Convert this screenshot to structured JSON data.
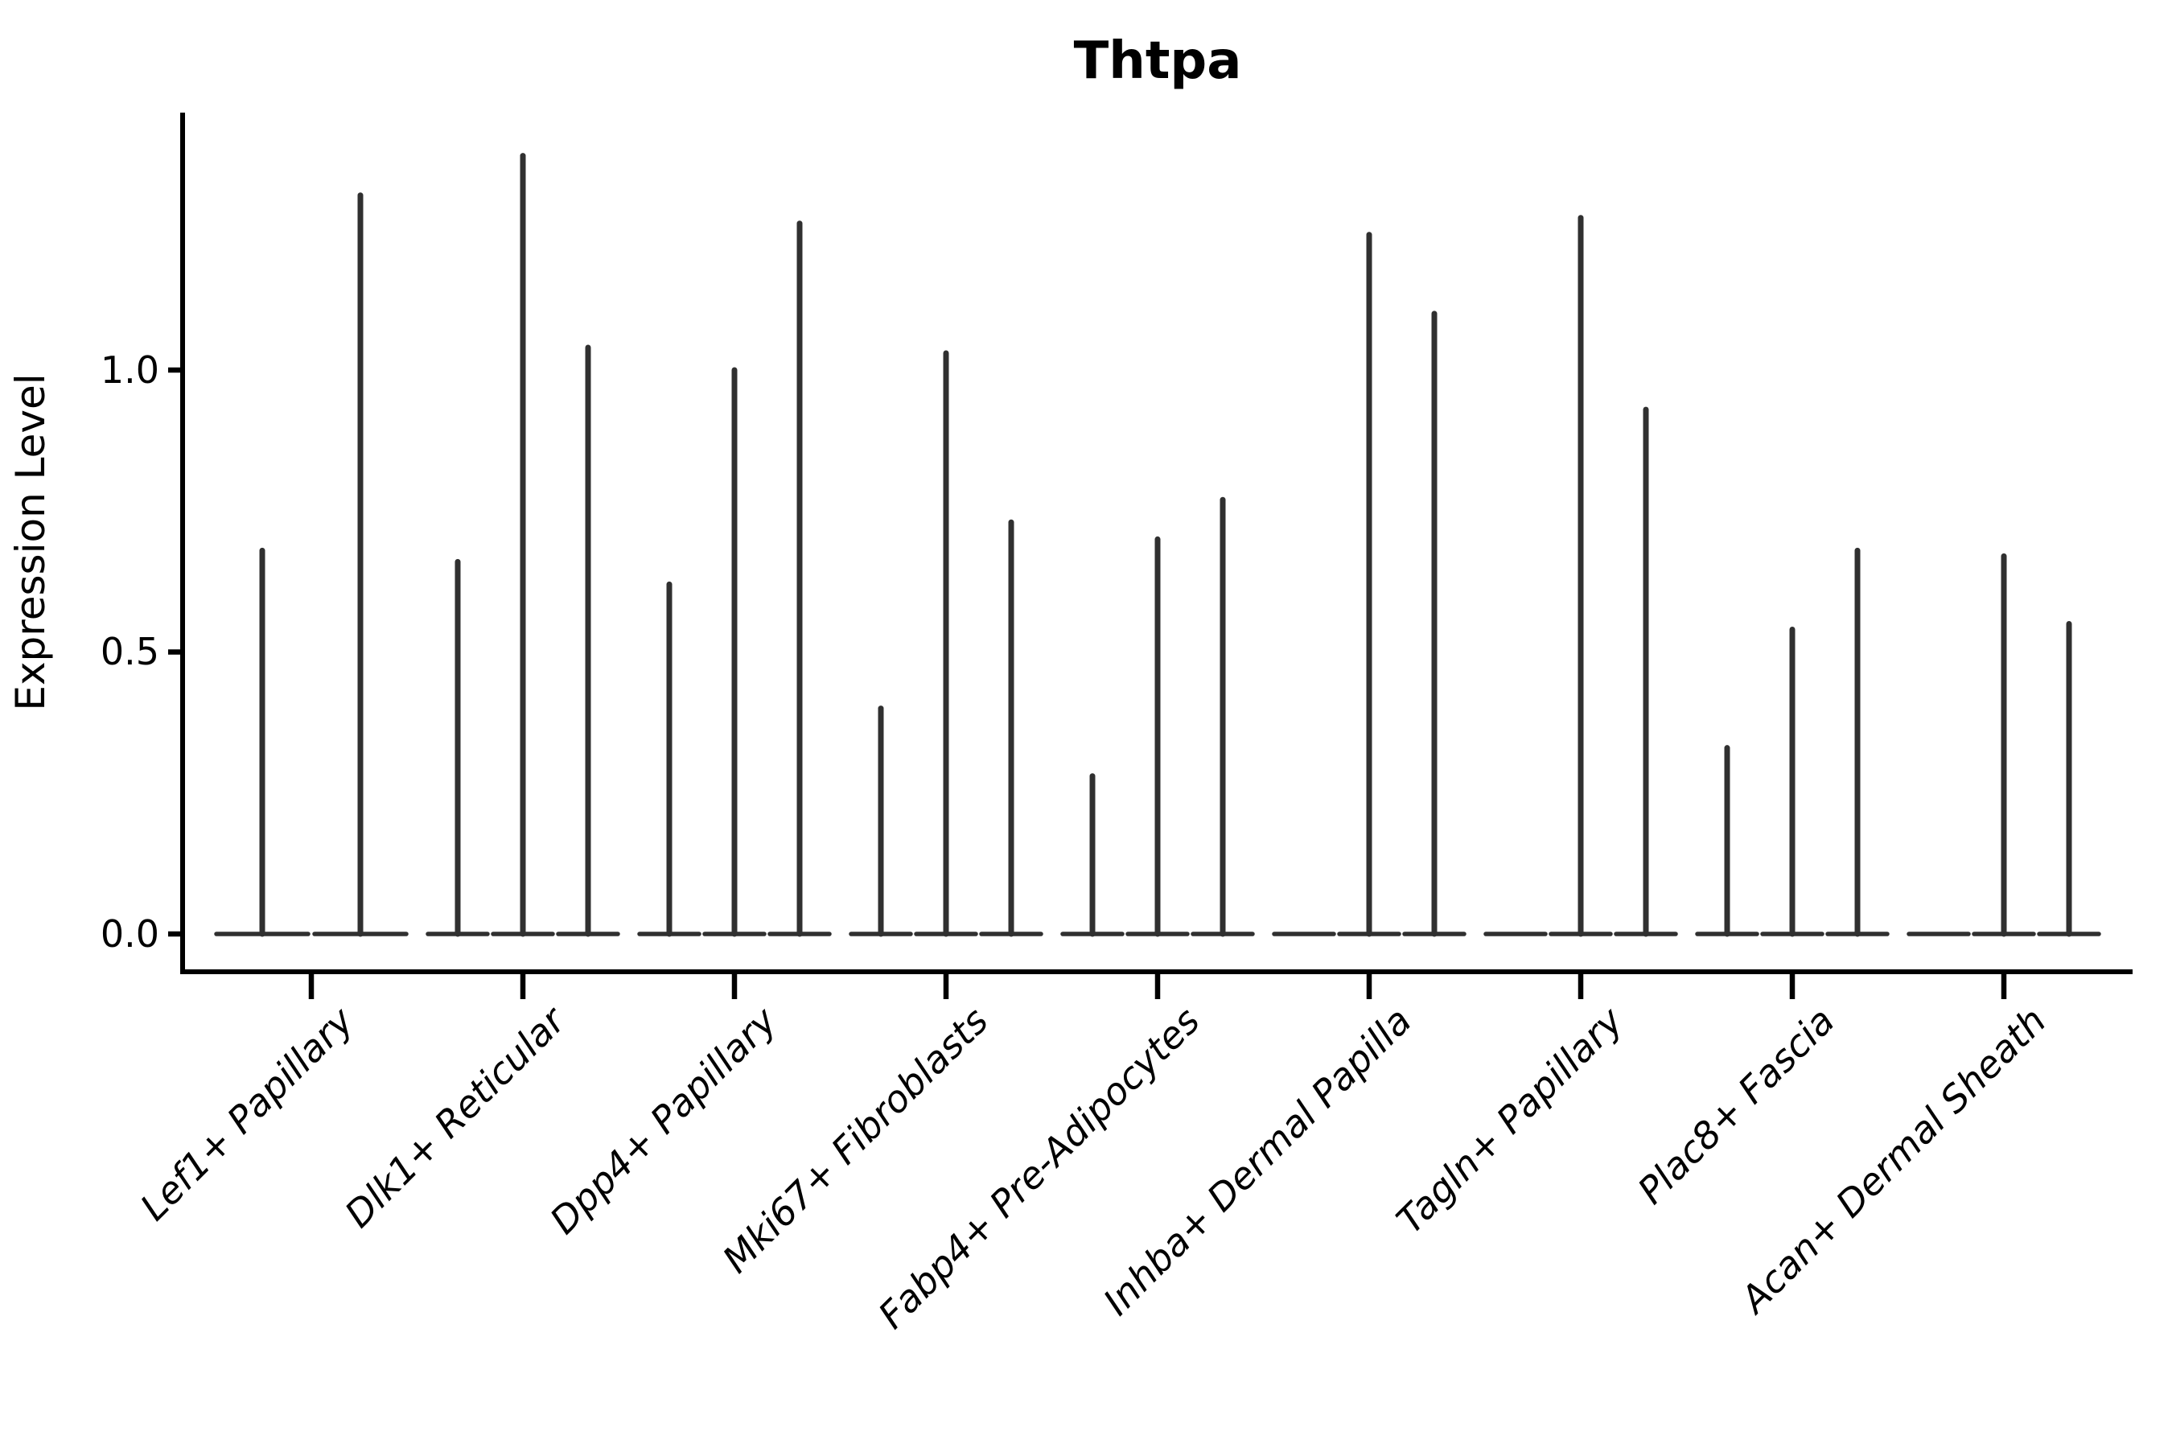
{
  "title": "Thtpa",
  "y_axis": {
    "label": "Expression Level",
    "tick_labels": [
      "0.0",
      "0.5",
      "1.0"
    ]
  },
  "style": {
    "violin_color": "#303030",
    "axis_color": "#000000",
    "background": "#ffffff"
  },
  "chart_data": {
    "type": "violin",
    "title": "Thtpa",
    "xlabel": "",
    "ylabel": "Expression Level",
    "ylim": [
      0,
      1.46
    ],
    "yticks": [
      0.0,
      0.5,
      1.0
    ],
    "grid": false,
    "legend_position": "none",
    "x_tick_rotation": 45,
    "categories": [
      "Lef1+ Papillary",
      "Dlk1+ Reticular",
      "Dpp4+ Papillary",
      "Mki67+ Fibroblasts",
      "Fabp4+ Pre-Adipocytes",
      "Inhba+ Dermal Papilla",
      "Tagln+ Papillary",
      "Plac8+ Fascia",
      "Acan+ Dermal Sheath"
    ],
    "description": "Each category shows 2-3 extremely thin violins: bulk of cells at expression 0 (flat base lens) with a needle-like tail rising to the peak expression value. Peaks of 0 mean a flat violin with no spike.",
    "groups": [
      {
        "label": "Lef1+ Papillary",
        "violins": [
          {
            "peak": 0.68
          },
          {
            "peak": 1.31
          }
        ]
      },
      {
        "label": "Dlk1+ Reticular",
        "violins": [
          {
            "peak": 0.66
          },
          {
            "peak": 1.38
          },
          {
            "peak": 1.04
          }
        ]
      },
      {
        "label": "Dpp4+ Papillary",
        "violins": [
          {
            "peak": 0.62
          },
          {
            "peak": 1.0
          },
          {
            "peak": 1.26
          }
        ]
      },
      {
        "label": "Mki67+ Fibroblasts",
        "violins": [
          {
            "peak": 0.4
          },
          {
            "peak": 1.03
          },
          {
            "peak": 0.73
          }
        ]
      },
      {
        "label": "Fabp4+ Pre-Adipocytes",
        "violins": [
          {
            "peak": 0.28
          },
          {
            "peak": 0.7
          },
          {
            "peak": 0.77
          }
        ]
      },
      {
        "label": "Inhba+ Dermal Papilla",
        "violins": [
          {
            "peak": 0.0
          },
          {
            "peak": 1.24
          },
          {
            "peak": 1.1
          }
        ]
      },
      {
        "label": "Tagln+ Papillary",
        "violins": [
          {
            "peak": 0.0
          },
          {
            "peak": 1.27
          },
          {
            "peak": 0.93
          }
        ]
      },
      {
        "label": "Plac8+ Fascia",
        "violins": [
          {
            "peak": 0.33
          },
          {
            "peak": 0.54
          },
          {
            "peak": 0.68
          }
        ]
      },
      {
        "label": "Acan+ Dermal Sheath",
        "violins": [
          {
            "peak": 0.0
          },
          {
            "peak": 0.67
          },
          {
            "peak": 0.55
          }
        ]
      }
    ]
  }
}
